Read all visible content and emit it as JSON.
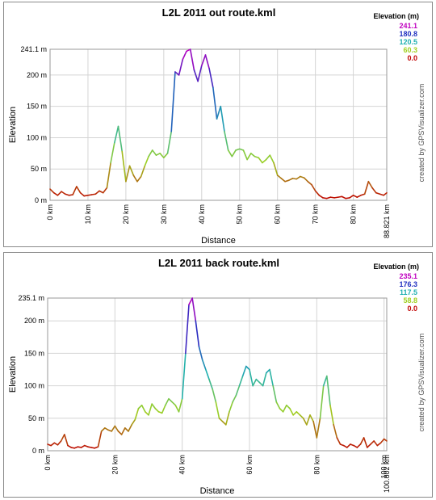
{
  "credit": "created by GPSVisualizer.com",
  "charts": [
    {
      "title": "L2L 2011 out route.kml",
      "xlabel": "Distance",
      "ylabel": "Elevation",
      "legend_title": "Elevation (m)",
      "legend_values": [
        {
          "label": "241.1",
          "color": "#c000c0"
        },
        {
          "label": "180.8",
          "color": "#2030c0"
        },
        {
          "label": "120.5",
          "color": "#20b0b0"
        },
        {
          "label": "60.3",
          "color": "#a0d020"
        },
        {
          "label": "0.0",
          "color": "#c00000"
        }
      ],
      "x_tick_labels": [
        "0 km",
        "10 km",
        "20 km",
        "30 km",
        "40 km",
        "50 km",
        "60 km",
        "70 km",
        "80 km",
        "88.821 km"
      ],
      "y_tick_labels": [
        "0 m",
        "50 m",
        "100 m",
        "150 m",
        "200 m",
        "241.1 m"
      ]
    },
    {
      "title": "L2L 2011 back route.kml",
      "xlabel": "Distance",
      "ylabel": "Elevation",
      "legend_title": "Elevation (m)",
      "legend_values": [
        {
          "label": "235.1",
          "color": "#c000c0"
        },
        {
          "label": "176.3",
          "color": "#2030c0"
        },
        {
          "label": "117.5",
          "color": "#20b0b0"
        },
        {
          "label": "58.8",
          "color": "#a0d020"
        },
        {
          "label": "0.0",
          "color": "#c00000"
        }
      ],
      "x_tick_labels": [
        "0 km",
        "20 km",
        "40 km",
        "60 km",
        "80 km",
        "100 km",
        "100.802 km"
      ],
      "y_tick_labels": [
        "0 m",
        "50 m",
        "100 m",
        "150 m",
        "200 m",
        "235.1 m"
      ]
    }
  ],
  "chart_data": [
    {
      "type": "line",
      "title": "L2L 2011 out route.kml",
      "xlabel": "Distance",
      "ylabel": "Elevation",
      "x_unit": "km",
      "y_unit": "m",
      "xlim": [
        0,
        88.821
      ],
      "ylim": [
        0,
        241.1
      ],
      "x_ticks": [
        0,
        10,
        20,
        30,
        40,
        50,
        60,
        70,
        80,
        88.821
      ],
      "y_ticks": [
        0,
        50,
        100,
        150,
        200,
        241.1
      ],
      "grid": true,
      "legend_placement": "top-right",
      "color_scale": [
        {
          "value": 241.1,
          "color": "#c000c0"
        },
        {
          "value": 180.8,
          "color": "#2030c0"
        },
        {
          "value": 120.5,
          "color": "#20b0b0"
        },
        {
          "value": 60.3,
          "color": "#a0d020"
        },
        {
          "value": 0.0,
          "color": "#c00000"
        }
      ],
      "series": [
        {
          "x": [
            0,
            1,
            2,
            3,
            4,
            5,
            6,
            7,
            8,
            9,
            10,
            11,
            12,
            13,
            14,
            15,
            16,
            17,
            18,
            19,
            20,
            21,
            22,
            23,
            24,
            25,
            26,
            27,
            28,
            29,
            30,
            31,
            32,
            33,
            34,
            35,
            36,
            37,
            38,
            39,
            40,
            41,
            42,
            43,
            44,
            45,
            46,
            47,
            48,
            49,
            50,
            51,
            52,
            53,
            54,
            55,
            56,
            57,
            58,
            59,
            60,
            61,
            62,
            63,
            64,
            65,
            66,
            67,
            68,
            69,
            70,
            71,
            72,
            73,
            74,
            75,
            76,
            77,
            78,
            79,
            80,
            81,
            82,
            83,
            84,
            85,
            86,
            87,
            88,
            88.821
          ],
          "y": [
            18,
            12,
            8,
            14,
            10,
            8,
            9,
            22,
            12,
            7,
            8,
            9,
            10,
            15,
            12,
            20,
            60,
            92,
            118,
            78,
            30,
            55,
            40,
            30,
            38,
            55,
            70,
            80,
            72,
            75,
            68,
            75,
            110,
            205,
            200,
            225,
            238,
            241,
            208,
            190,
            215,
            232,
            210,
            180,
            130,
            150,
            110,
            80,
            70,
            80,
            82,
            80,
            65,
            75,
            70,
            68,
            60,
            65,
            72,
            60,
            40,
            35,
            30,
            32,
            35,
            34,
            38,
            36,
            30,
            25,
            15,
            8,
            4,
            3,
            5,
            4,
            5,
            6,
            3,
            4,
            8,
            5,
            8,
            10,
            30,
            20,
            12,
            10,
            8,
            12
          ]
        }
      ]
    },
    {
      "type": "line",
      "title": "L2L 2011 back route.kml",
      "xlabel": "Distance",
      "ylabel": "Elevation",
      "x_unit": "km",
      "y_unit": "m",
      "xlim": [
        0,
        100.802
      ],
      "ylim": [
        0,
        235.1
      ],
      "x_ticks": [
        0,
        20,
        40,
        60,
        80,
        100,
        100.802
      ],
      "y_ticks": [
        0,
        50,
        100,
        150,
        200,
        235.1
      ],
      "grid": true,
      "legend_placement": "top-right",
      "color_scale": [
        {
          "value": 235.1,
          "color": "#c000c0"
        },
        {
          "value": 176.3,
          "color": "#2030c0"
        },
        {
          "value": 117.5,
          "color": "#20b0b0"
        },
        {
          "value": 58.8,
          "color": "#a0d020"
        },
        {
          "value": 0.0,
          "color": "#c00000"
        }
      ],
      "series": [
        {
          "x": [
            0,
            1,
            2,
            3,
            4,
            5,
            6,
            7,
            8,
            9,
            10,
            11,
            12,
            13,
            14,
            15,
            16,
            17,
            18,
            19,
            20,
            21,
            22,
            23,
            24,
            25,
            26,
            27,
            28,
            29,
            30,
            31,
            32,
            33,
            34,
            35,
            36,
            37,
            38,
            39,
            40,
            41,
            42,
            43,
            44,
            45,
            46,
            47,
            48,
            49,
            50,
            51,
            52,
            53,
            54,
            55,
            56,
            57,
            58,
            59,
            60,
            61,
            62,
            63,
            64,
            65,
            66,
            67,
            68,
            69,
            70,
            71,
            72,
            73,
            74,
            75,
            76,
            77,
            78,
            79,
            80,
            81,
            82,
            83,
            84,
            85,
            86,
            87,
            88,
            89,
            90,
            91,
            92,
            93,
            94,
            95,
            96,
            97,
            98,
            99,
            100,
            100.802
          ],
          "y": [
            10,
            8,
            12,
            9,
            15,
            25,
            8,
            5,
            4,
            6,
            5,
            8,
            6,
            5,
            4,
            6,
            30,
            35,
            32,
            30,
            38,
            30,
            25,
            35,
            30,
            40,
            48,
            65,
            70,
            60,
            55,
            72,
            65,
            60,
            58,
            70,
            80,
            75,
            70,
            60,
            80,
            150,
            225,
            235,
            200,
            160,
            140,
            125,
            110,
            95,
            75,
            50,
            45,
            40,
            60,
            75,
            85,
            100,
            115,
            130,
            125,
            100,
            110,
            105,
            100,
            120,
            125,
            100,
            75,
            65,
            60,
            70,
            65,
            55,
            60,
            55,
            50,
            40,
            55,
            45,
            20,
            50,
            100,
            115,
            70,
            40,
            20,
            10,
            8,
            5,
            10,
            8,
            5,
            10,
            20,
            5,
            10,
            15,
            8,
            12,
            18,
            15
          ]
        }
      ]
    }
  ]
}
